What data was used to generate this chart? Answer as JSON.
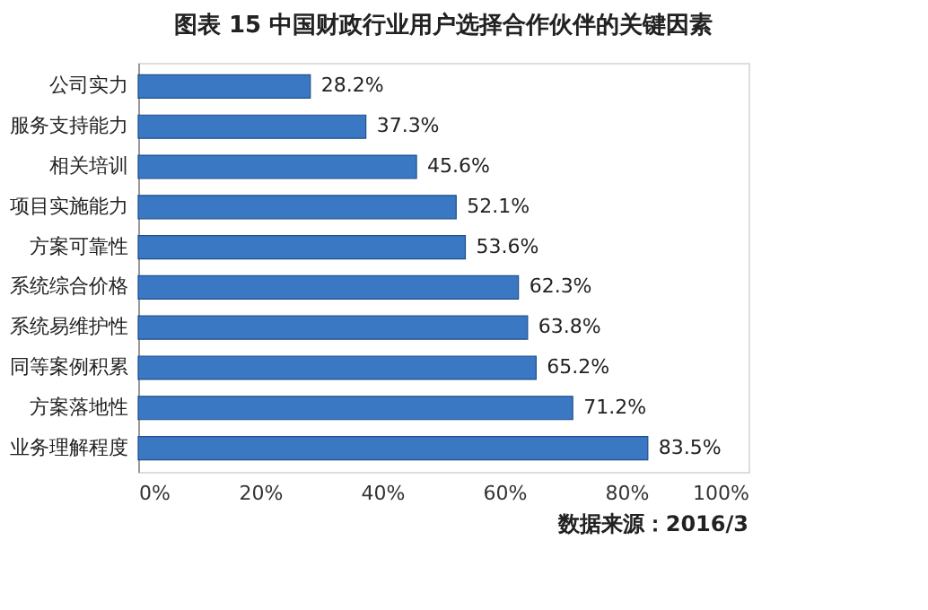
{
  "chart_data": {
    "type": "bar",
    "orientation": "horizontal",
    "title": "图表 15 中国财政行业用户选择合作伙伴的关键因素",
    "categories": [
      "公司实力",
      "服务支持能力",
      "相关培训",
      "项目实施能力",
      "方案可靠性",
      "系统综合价格",
      "系统易维护性",
      "同等案例积累",
      "方案落地性",
      "业务理解程度"
    ],
    "values": [
      28.2,
      37.3,
      45.6,
      52.1,
      53.6,
      62.3,
      63.8,
      65.2,
      71.2,
      83.5
    ],
    "value_labels": [
      "28.2%",
      "37.3%",
      "45.6%",
      "52.1%",
      "53.6%",
      "62.3%",
      "63.8%",
      "65.2%",
      "71.2%",
      "83.5%"
    ],
    "color": "#3a78c4",
    "xlim": [
      0,
      100
    ],
    "xticks": [
      {
        "value": 0,
        "label": "0%"
      },
      {
        "value": 20,
        "label": "20%"
      },
      {
        "value": 40,
        "label": "40%"
      },
      {
        "value": 60,
        "label": "60%"
      },
      {
        "value": 80,
        "label": "80%"
      },
      {
        "value": 100,
        "label": "100%"
      }
    ],
    "grid": false,
    "annotations": [
      "数据来源：2016/3"
    ]
  }
}
